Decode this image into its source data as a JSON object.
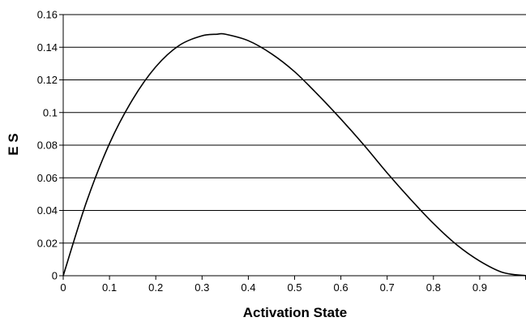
{
  "chart_data": {
    "type": "line",
    "title": "",
    "xlabel": "Activation State",
    "ylabel": "E S",
    "xlim": [
      0,
      1
    ],
    "ylim": [
      0,
      0.16
    ],
    "x_ticks": [
      0,
      0.1,
      0.2,
      0.3,
      0.4,
      0.5,
      0.6,
      0.7,
      0.8,
      0.9
    ],
    "x_tick_labels": [
      "0",
      "0.1",
      "0.2",
      "0.3",
      "0.4",
      "0.5",
      "0.6",
      "0.7",
      "0.8",
      "0.9"
    ],
    "y_ticks": [
      0,
      0.02,
      0.04,
      0.06,
      0.08,
      0.1,
      0.12,
      0.14,
      0.16
    ],
    "y_tick_labels": [
      "0",
      "0.02",
      "0.04",
      "0.06",
      "0.08",
      "0.1",
      "0.12",
      "0.14",
      "0.16"
    ],
    "grid": "horizontal",
    "legend": "none",
    "line_color": "#000000",
    "series": [
      {
        "x": [
          0,
          0.05,
          0.1,
          0.15,
          0.2,
          0.25,
          0.3,
          0.333,
          0.35,
          0.4,
          0.45,
          0.5,
          0.55,
          0.6,
          0.65,
          0.7,
          0.75,
          0.8,
          0.85,
          0.9,
          0.95,
          1.0
        ],
        "values": [
          0,
          0.045,
          0.081,
          0.108,
          0.128,
          0.141,
          0.147,
          0.148,
          0.148,
          0.144,
          0.136,
          0.125,
          0.111,
          0.096,
          0.08,
          0.063,
          0.047,
          0.032,
          0.019,
          0.009,
          0.002,
          0
        ]
      }
    ]
  }
}
